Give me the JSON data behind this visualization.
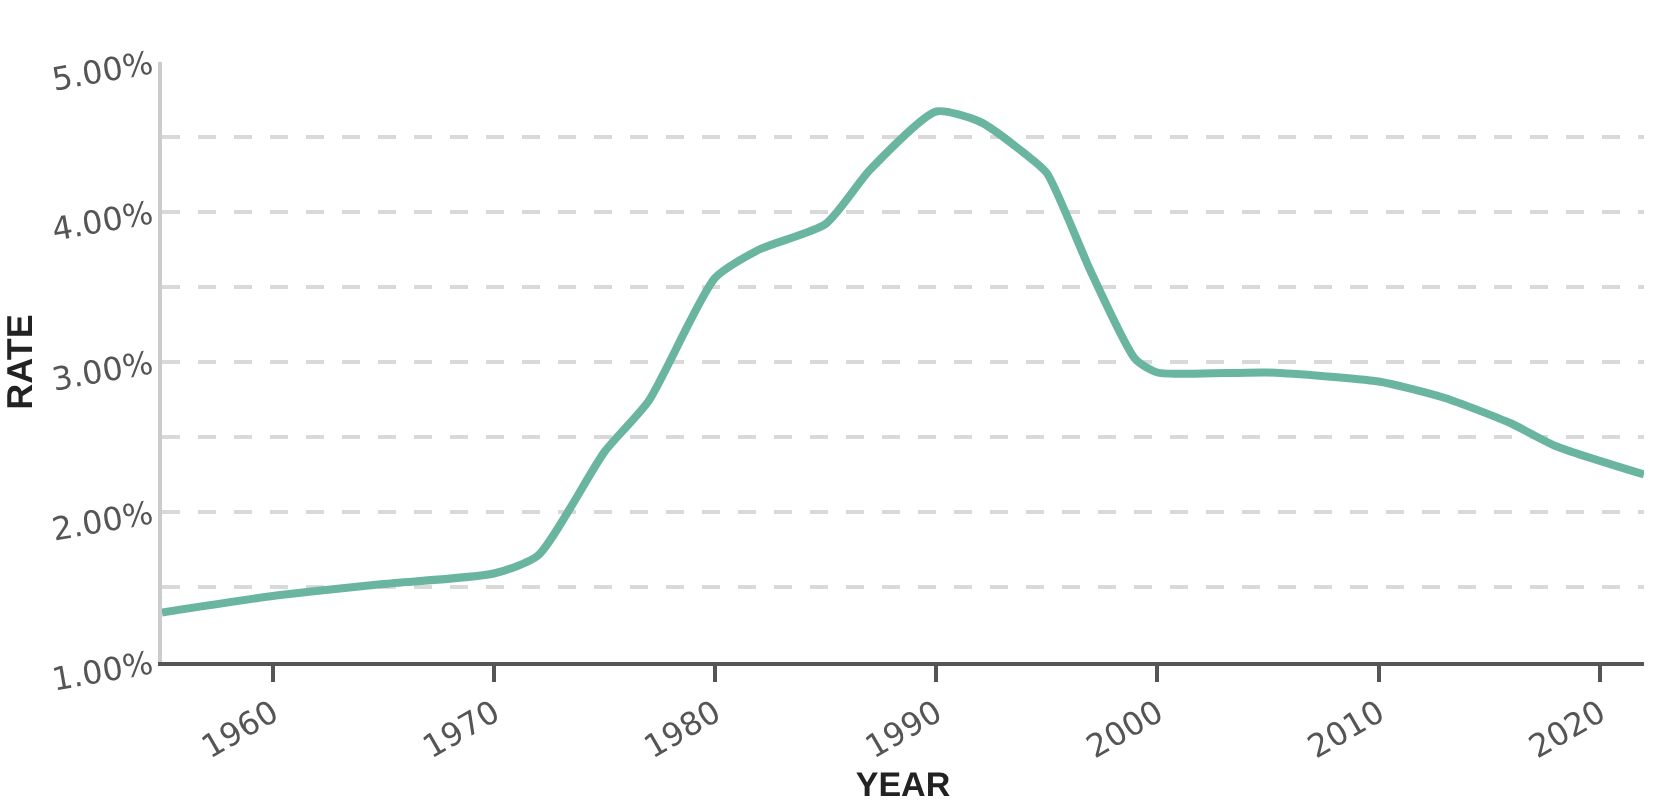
{
  "chart_data": {
    "type": "line",
    "xlabel": "YEAR",
    "ylabel": "RATE",
    "x": [
      1955,
      1960,
      1965,
      1970,
      1972,
      1975,
      1977,
      1980,
      1982,
      1985,
      1987,
      1990,
      1992,
      1994,
      1995,
      1997,
      1999,
      2000,
      2005,
      2010,
      2013,
      2016,
      2018,
      2022
    ],
    "series": [
      {
        "color": "#6ab5a0",
        "values": [
          1.33,
          1.44,
          1.52,
          1.59,
          1.71,
          2.4,
          2.74,
          3.56,
          3.75,
          3.92,
          4.28,
          4.67,
          4.6,
          4.39,
          4.26,
          3.6,
          3.02,
          2.93,
          2.93,
          2.87,
          2.76,
          2.59,
          2.44,
          2.25
        ]
      }
    ],
    "xlim": [
      1955,
      2022
    ],
    "xticks": [
      1960,
      1970,
      1980,
      1990,
      2000,
      2010,
      2020
    ],
    "ylim": [
      1,
      5
    ],
    "yticks": [
      {
        "value": 1,
        "label": "1.00%"
      },
      {
        "value": 1.5,
        "label": null
      },
      {
        "value": 2,
        "label": "2.00%"
      },
      {
        "value": 2.5,
        "label": null
      },
      {
        "value": 3,
        "label": "3.00%"
      },
      {
        "value": 3.5,
        "label": null
      },
      {
        "value": 4,
        "label": "4.00%"
      },
      {
        "value": 4.5,
        "label": null
      },
      {
        "value": 5,
        "label": "5.00%"
      }
    ],
    "grid": "y",
    "legend": false,
    "marker": "none",
    "line_style": "solid"
  }
}
